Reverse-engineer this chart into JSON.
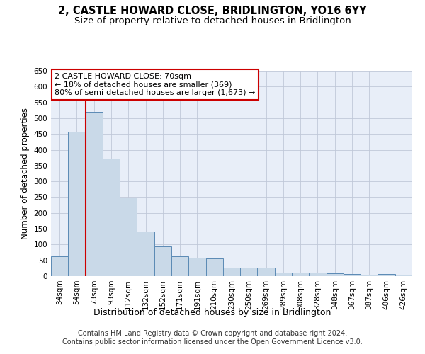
{
  "title": "2, CASTLE HOWARD CLOSE, BRIDLINGTON, YO16 6YY",
  "subtitle": "Size of property relative to detached houses in Bridlington",
  "xlabel": "Distribution of detached houses by size in Bridlington",
  "ylabel": "Number of detached properties",
  "categories": [
    "34sqm",
    "54sqm",
    "73sqm",
    "93sqm",
    "112sqm",
    "132sqm",
    "152sqm",
    "171sqm",
    "191sqm",
    "210sqm",
    "230sqm",
    "250sqm",
    "269sqm",
    "289sqm",
    "308sqm",
    "328sqm",
    "348sqm",
    "367sqm",
    "387sqm",
    "406sqm",
    "426sqm"
  ],
  "values": [
    63,
    457,
    519,
    371,
    249,
    141,
    94,
    63,
    59,
    56,
    27,
    26,
    27,
    11,
    12,
    12,
    8,
    6,
    5,
    7,
    5
  ],
  "bar_color": "#c9d9e8",
  "bar_edge_color": "#5b8ab5",
  "vline_x": 1.5,
  "vline_color": "#cc0000",
  "annotation_line1": "2 CASTLE HOWARD CLOSE: 70sqm",
  "annotation_line2": "← 18% of detached houses are smaller (369)",
  "annotation_line3": "80% of semi-detached houses are larger (1,673) →",
  "annotation_box_color": "#ffffff",
  "annotation_box_edge": "#cc0000",
  "ylim": [
    0,
    650
  ],
  "yticks": [
    0,
    50,
    100,
    150,
    200,
    250,
    300,
    350,
    400,
    450,
    500,
    550,
    600,
    650
  ],
  "grid_color": "#c0c8d8",
  "background_color": "#e8eef8",
  "footer_line1": "Contains HM Land Registry data © Crown copyright and database right 2024.",
  "footer_line2": "Contains public sector information licensed under the Open Government Licence v3.0.",
  "title_fontsize": 10.5,
  "subtitle_fontsize": 9.5,
  "xlabel_fontsize": 9,
  "ylabel_fontsize": 8.5,
  "tick_fontsize": 7.5,
  "annotation_fontsize": 8,
  "footer_fontsize": 7
}
